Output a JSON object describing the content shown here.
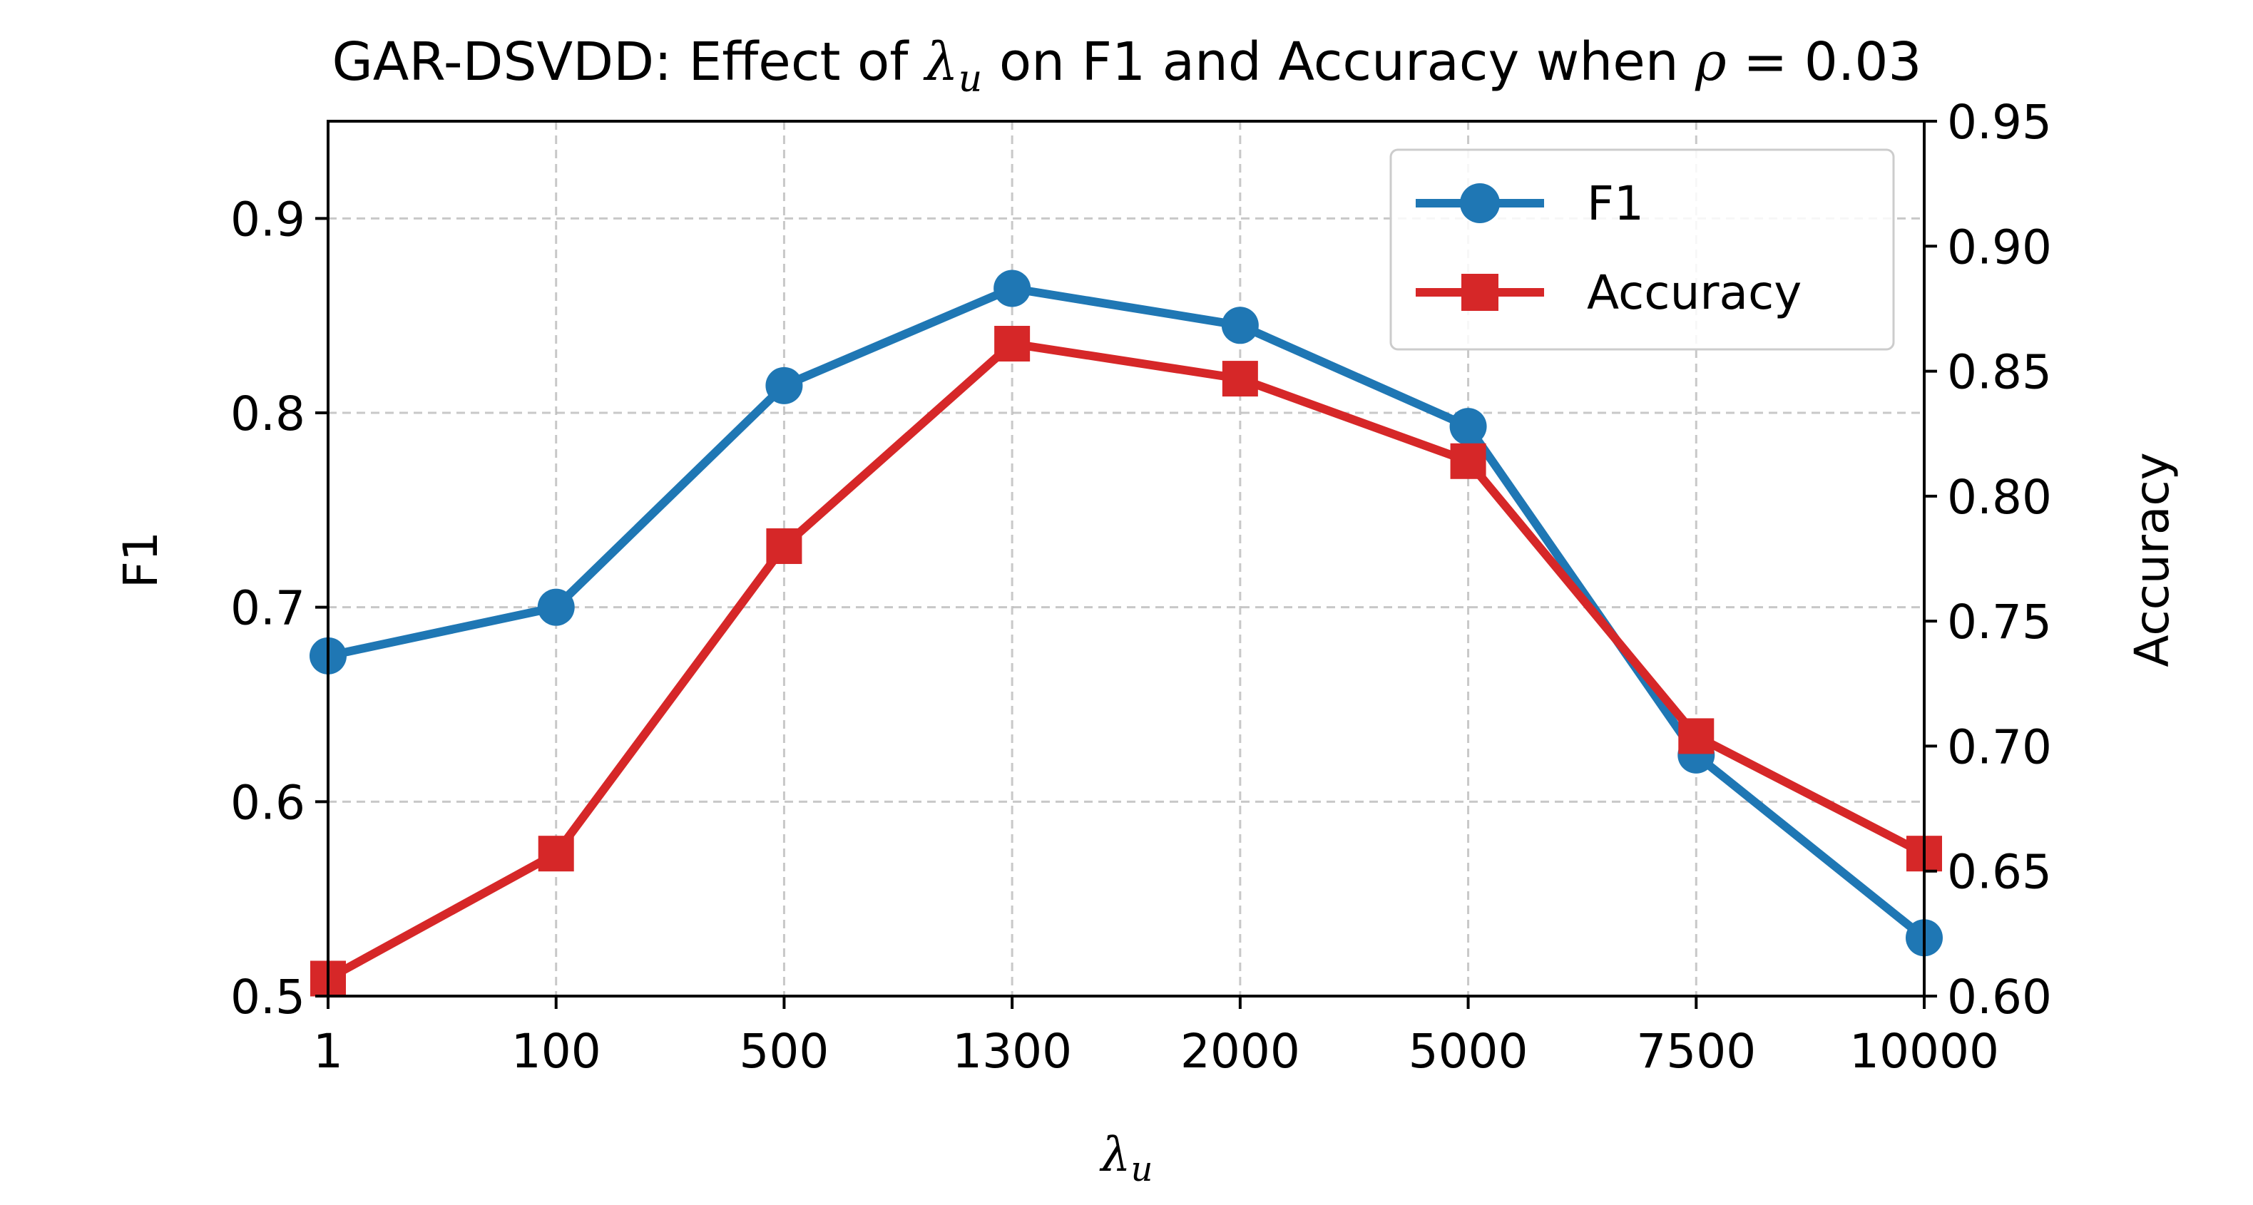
{
  "chart_data": {
    "type": "line",
    "title": {
      "prefix": "GAR-DSVDD: Effect of ",
      "symbol": "λ",
      "symbol_sub": "u",
      "middle": " on F1 and Accuracy when ",
      "param_symbol": "ρ",
      "param_value": " = 0.03"
    },
    "xlabel": {
      "symbol": "λ",
      "sub": "u"
    },
    "ylabel_left": "F1",
    "ylabel_right": "Accuracy",
    "categories": [
      "1",
      "100",
      "500",
      "1300",
      "2000",
      "5000",
      "7500",
      "10000"
    ],
    "ylim_left": [
      0.5,
      0.95
    ],
    "ylim_right": [
      0.6,
      0.95
    ],
    "yticks_left": [
      "0.5",
      "0.6",
      "0.7",
      "0.8",
      "0.9"
    ],
    "yticks_right": [
      "0.60",
      "0.65",
      "0.70",
      "0.75",
      "0.80",
      "0.85",
      "0.90",
      "0.95"
    ],
    "grid": true,
    "legend_position": "top-right",
    "series": [
      {
        "name": "F1",
        "axis": "left",
        "marker": "circle",
        "color": "#1f77b4",
        "values": [
          0.675,
          0.7,
          0.814,
          0.864,
          0.845,
          0.793,
          0.624,
          0.53
        ]
      },
      {
        "name": "Accuracy",
        "axis": "right",
        "marker": "square",
        "color": "#d62728",
        "values": [
          0.607,
          0.657,
          0.78,
          0.861,
          0.847,
          0.814,
          0.704,
          0.657
        ]
      }
    ]
  }
}
